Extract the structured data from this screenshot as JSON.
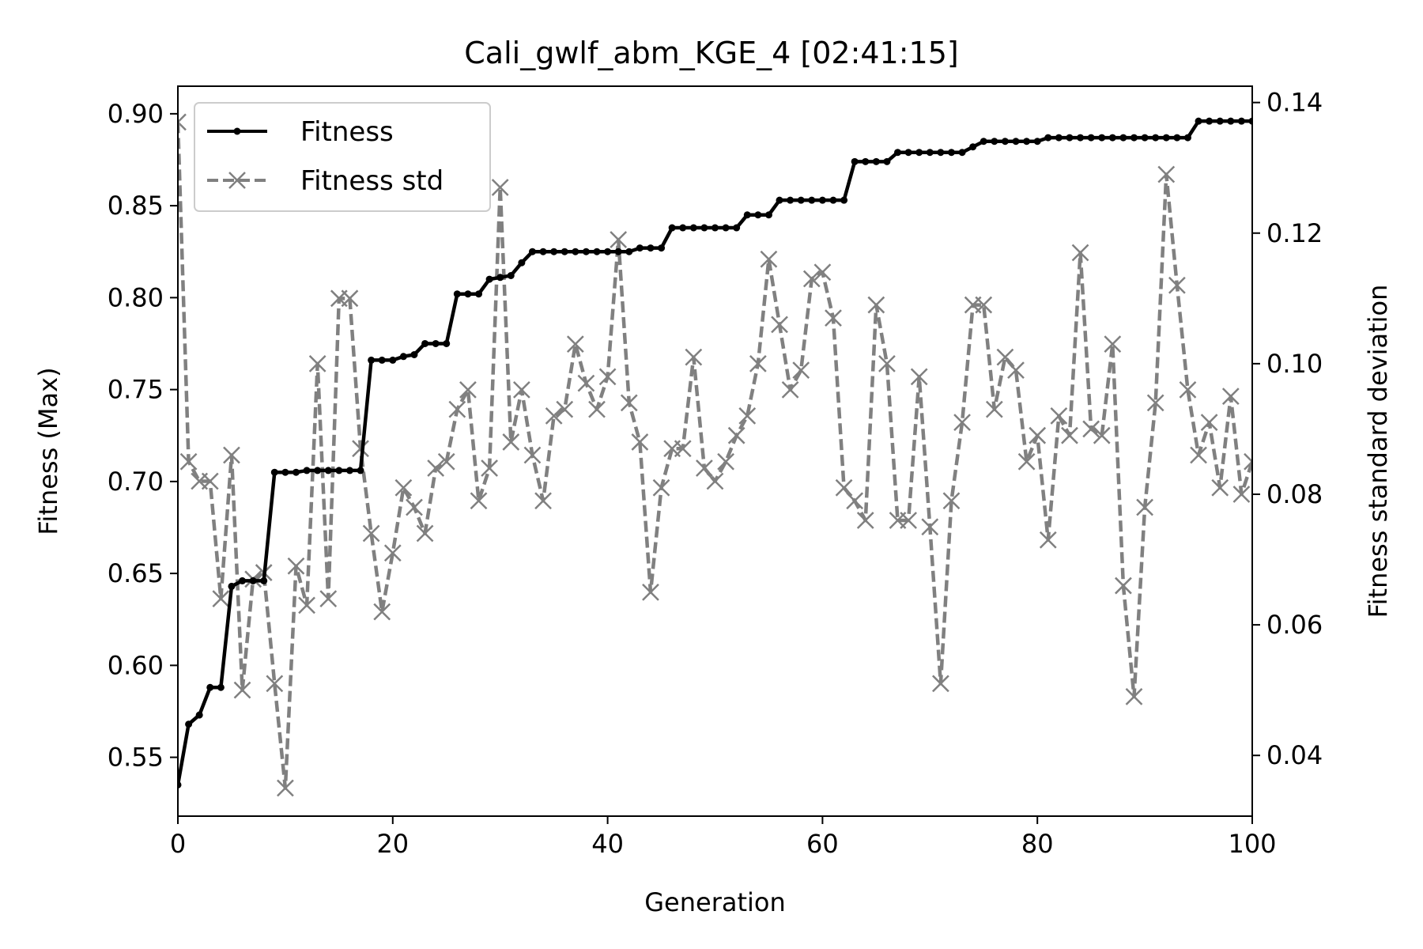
{
  "chart_data": {
    "type": "line",
    "title": "Cali_gwlf_abm_KGE_4  [02:41:15]",
    "xlabel": "Generation",
    "ylabel": "Fitness (Max)",
    "ylabel_right": "Fitness standard deviation",
    "xlim": [
      0,
      100
    ],
    "ylim": [
      0.518,
      0.915
    ],
    "ylim_right": [
      0.0307,
      0.1425
    ],
    "xticks": [
      0,
      20,
      40,
      60,
      80,
      100
    ],
    "yticks": [
      0.55,
      0.6,
      0.65,
      0.7,
      0.75,
      0.8,
      0.85,
      0.9
    ],
    "yticks_right": [
      0.04,
      0.06,
      0.08,
      0.1,
      0.12,
      0.14
    ],
    "legend_position": "upper-left",
    "grid": false,
    "series": [
      {
        "name": "Fitness",
        "axis": "left",
        "color": "#000000",
        "style": "solid",
        "marker": "dot",
        "x": [
          0,
          1,
          2,
          3,
          4,
          5,
          6,
          7,
          8,
          9,
          10,
          11,
          12,
          13,
          14,
          15,
          16,
          17,
          18,
          19,
          20,
          21,
          22,
          23,
          24,
          25,
          26,
          27,
          28,
          29,
          30,
          31,
          32,
          33,
          34,
          35,
          36,
          37,
          38,
          39,
          40,
          41,
          42,
          43,
          44,
          45,
          46,
          47,
          48,
          49,
          50,
          51,
          52,
          53,
          54,
          55,
          56,
          57,
          58,
          59,
          60,
          61,
          62,
          63,
          64,
          65,
          66,
          67,
          68,
          69,
          70,
          71,
          72,
          73,
          74,
          75,
          76,
          77,
          78,
          79,
          80,
          81,
          82,
          83,
          84,
          85,
          86,
          87,
          88,
          89,
          90,
          91,
          92,
          93,
          94,
          95,
          96,
          97,
          98,
          99,
          100
        ],
        "values": [
          0.535,
          0.568,
          0.573,
          0.588,
          0.588,
          0.643,
          0.646,
          0.646,
          0.646,
          0.705,
          0.705,
          0.705,
          0.706,
          0.706,
          0.706,
          0.706,
          0.706,
          0.706,
          0.766,
          0.766,
          0.766,
          0.768,
          0.769,
          0.775,
          0.775,
          0.775,
          0.802,
          0.802,
          0.802,
          0.81,
          0.811,
          0.812,
          0.819,
          0.825,
          0.825,
          0.825,
          0.825,
          0.825,
          0.825,
          0.825,
          0.825,
          0.825,
          0.825,
          0.827,
          0.827,
          0.827,
          0.838,
          0.838,
          0.838,
          0.838,
          0.838,
          0.838,
          0.838,
          0.845,
          0.845,
          0.845,
          0.853,
          0.853,
          0.853,
          0.853,
          0.853,
          0.853,
          0.853,
          0.874,
          0.874,
          0.874,
          0.874,
          0.879,
          0.879,
          0.879,
          0.879,
          0.879,
          0.879,
          0.879,
          0.882,
          0.885,
          0.885,
          0.885,
          0.885,
          0.885,
          0.885,
          0.887,
          0.887,
          0.887,
          0.887,
          0.887,
          0.887,
          0.887,
          0.887,
          0.887,
          0.887,
          0.887,
          0.887,
          0.887,
          0.887,
          0.896,
          0.896,
          0.896,
          0.896,
          0.896,
          0.896
        ]
      },
      {
        "name": "Fitness std",
        "axis": "right",
        "color": "#808080",
        "style": "dashed",
        "marker": "x",
        "x": [
          0,
          1,
          2,
          3,
          4,
          5,
          6,
          7,
          8,
          9,
          10,
          11,
          12,
          13,
          14,
          15,
          16,
          17,
          18,
          19,
          20,
          21,
          22,
          23,
          24,
          25,
          26,
          27,
          28,
          29,
          30,
          31,
          32,
          33,
          34,
          35,
          36,
          37,
          38,
          39,
          40,
          41,
          42,
          43,
          44,
          45,
          46,
          47,
          48,
          49,
          50,
          51,
          52,
          53,
          54,
          55,
          56,
          57,
          58,
          59,
          60,
          61,
          62,
          63,
          64,
          65,
          66,
          67,
          68,
          69,
          70,
          71,
          72,
          73,
          74,
          75,
          76,
          77,
          78,
          79,
          80,
          81,
          82,
          83,
          84,
          85,
          86,
          87,
          88,
          89,
          90,
          91,
          92,
          93,
          94,
          95,
          96,
          97,
          98,
          99,
          100
        ],
        "values": [
          0.137,
          0.085,
          0.082,
          0.082,
          0.064,
          0.086,
          0.05,
          0.067,
          0.068,
          0.051,
          0.035,
          0.069,
          0.063,
          0.1,
          0.064,
          0.11,
          0.11,
          0.087,
          0.074,
          0.062,
          0.071,
          0.081,
          0.078,
          0.074,
          0.084,
          0.085,
          0.093,
          0.096,
          0.079,
          0.084,
          0.127,
          0.088,
          0.096,
          0.086,
          0.079,
          0.092,
          0.093,
          0.103,
          0.097,
          0.093,
          0.098,
          0.119,
          0.094,
          0.088,
          0.065,
          0.081,
          0.087,
          0.087,
          0.101,
          0.084,
          0.082,
          0.085,
          0.089,
          0.092,
          0.1,
          0.116,
          0.106,
          0.096,
          0.099,
          0.113,
          0.114,
          0.107,
          0.081,
          0.079,
          0.076,
          0.109,
          0.1,
          0.076,
          0.076,
          0.098,
          0.075,
          0.051,
          0.079,
          0.091,
          0.109,
          0.109,
          0.093,
          0.101,
          0.099,
          0.085,
          0.089,
          0.073,
          0.092,
          0.089,
          0.117,
          0.09,
          0.089,
          0.103,
          0.066,
          0.049,
          0.078,
          0.094,
          0.129,
          0.112,
          0.096,
          0.086,
          0.091,
          0.081,
          0.095,
          0.08,
          0.085
        ]
      }
    ]
  }
}
